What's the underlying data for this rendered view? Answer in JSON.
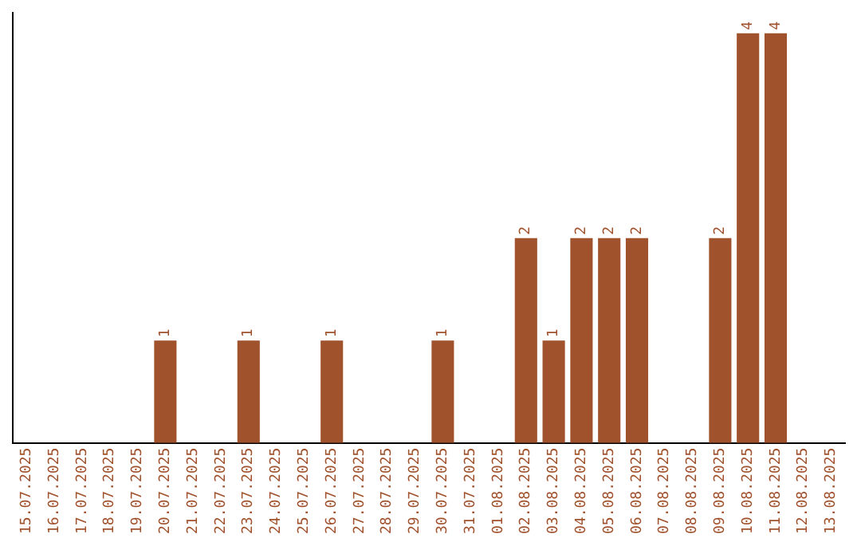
{
  "chart_data": {
    "type": "bar",
    "color": "#a0522d",
    "categories": [
      "15.07.2025",
      "16.07.2025",
      "17.07.2025",
      "18.07.2025",
      "19.07.2025",
      "20.07.2025",
      "21.07.2025",
      "22.07.2025",
      "23.07.2025",
      "24.07.2025",
      "25.07.2025",
      "26.07.2025",
      "27.07.2025",
      "28.07.2025",
      "29.07.2025",
      "30.07.2025",
      "31.07.2025",
      "01.08.2025",
      "02.08.2025",
      "03.08.2025",
      "04.08.2025",
      "05.08.2025",
      "06.08.2025",
      "07.08.2025",
      "08.08.2025",
      "09.08.2025",
      "10.08.2025",
      "11.08.2025",
      "12.08.2025",
      "13.08.2025"
    ],
    "values": [
      0,
      0,
      0,
      0,
      0,
      1,
      0,
      0,
      1,
      0,
      0,
      1,
      0,
      0,
      0,
      1,
      0,
      0,
      2,
      1,
      2,
      2,
      2,
      0,
      0,
      2,
      4,
      4,
      0,
      0
    ],
    "value_labels": [
      null,
      null,
      null,
      null,
      null,
      "1",
      null,
      null,
      "1",
      null,
      null,
      "1",
      null,
      null,
      null,
      "1",
      null,
      null,
      "2",
      "1",
      "2",
      "2",
      "2",
      null,
      null,
      "2",
      "4",
      "4",
      null,
      null
    ],
    "grid": false,
    "legend": false
  }
}
